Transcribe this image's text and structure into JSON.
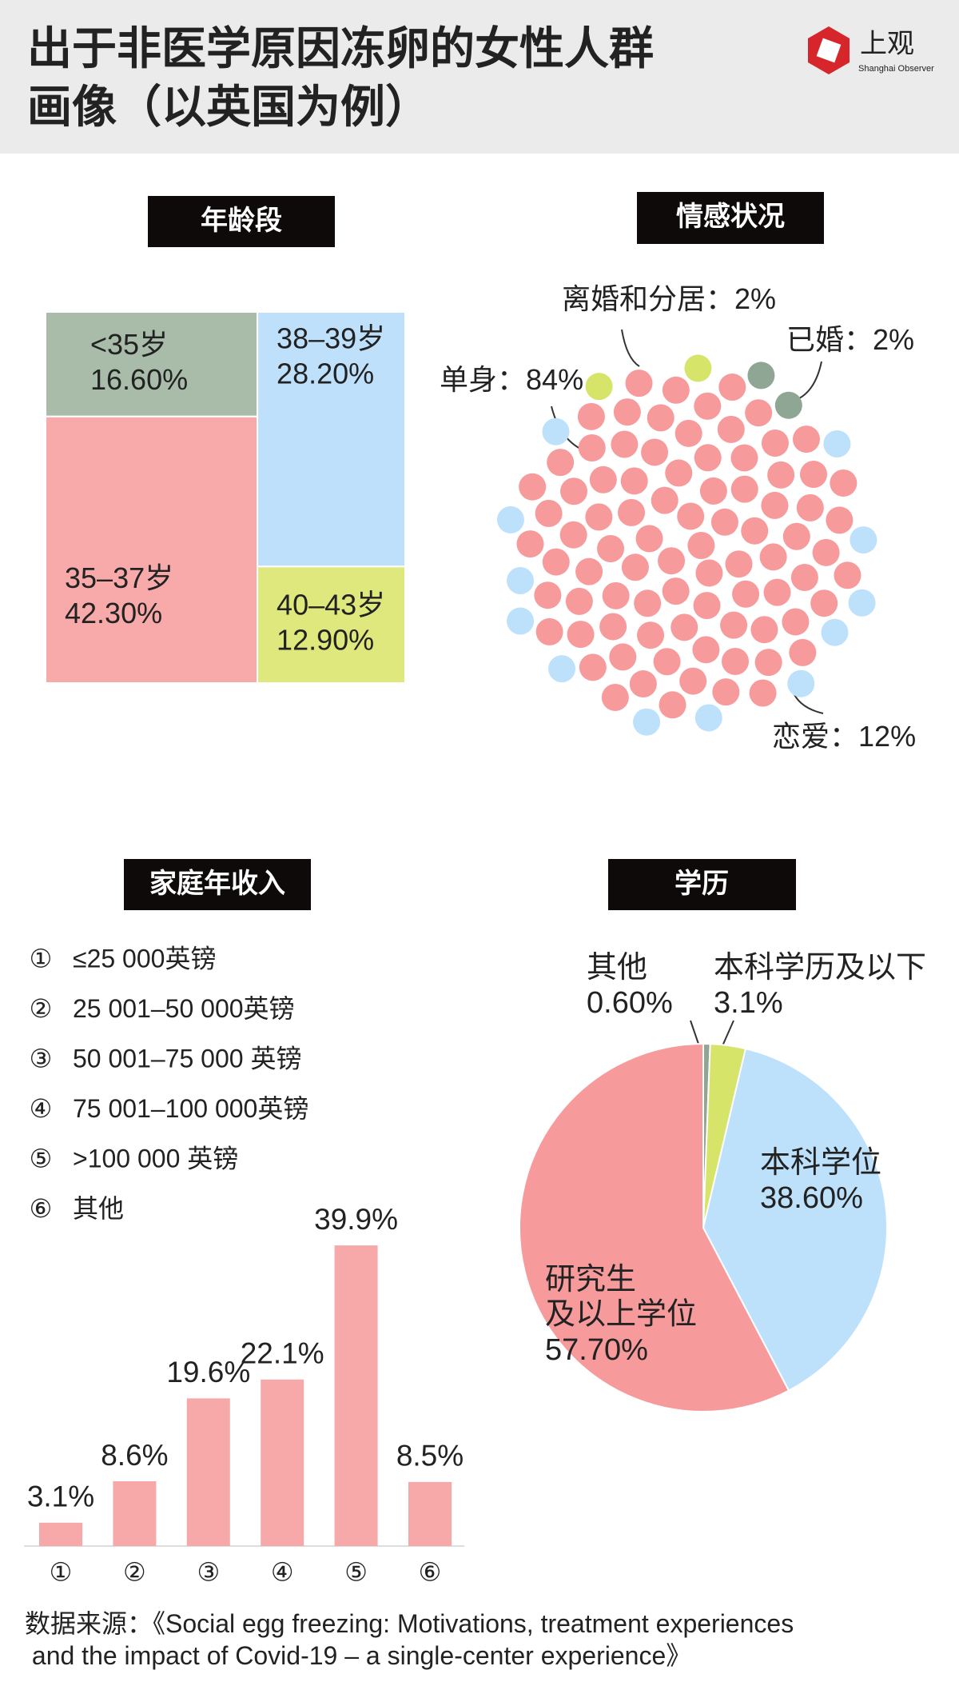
{
  "title": "出于非医学原因冻卵的女性人群\n画像（以英国为例）",
  "logo": {
    "name": "上观",
    "subtitle": "Shanghai Observer"
  },
  "chart_data": [
    {
      "type": "treemap",
      "title": "年龄段",
      "categories": [
        "<35岁",
        "35–37岁",
        "38–39岁",
        "40–43岁"
      ],
      "values": [
        16.6,
        42.3,
        28.2,
        12.9
      ],
      "value_labels": [
        "16.60%",
        "42.30%",
        "28.20%",
        "12.90%"
      ],
      "colors": [
        "#a9bcaa",
        "#f7aaa9",
        "#bfe0fb",
        "#dfe87c"
      ]
    },
    {
      "type": "dots",
      "title": "情感状况",
      "categories": [
        "离婚和分居",
        "已婚",
        "单身",
        "恋爱"
      ],
      "separator": "：",
      "values": [
        2,
        2,
        84,
        12
      ],
      "value_labels": [
        "2%",
        "2%",
        "84%",
        "12%"
      ],
      "colors": [
        "#d6e46a",
        "#8fa694",
        "#f79a9b",
        "#bde0fb"
      ]
    },
    {
      "type": "bar",
      "title": "家庭年收入",
      "categories": [
        "①",
        "②",
        "③",
        "④",
        "⑤",
        "⑥"
      ],
      "category_descriptions": [
        "≤25 000英镑",
        "25 001–50 000英镑",
        "50 001–75 000 英镑",
        "75 001–100 000英镑",
        ">100 000 英镑",
        "其他"
      ],
      "values": [
        3.1,
        8.6,
        19.6,
        22.1,
        39.9,
        8.5
      ],
      "value_labels": [
        "3.1%",
        "8.6%",
        "19.6%",
        "22.1%",
        "39.9%",
        "8.5%"
      ],
      "color": "#f7a9aa"
    },
    {
      "type": "pie",
      "title": "学历",
      "categories": [
        "其他",
        "本科学历及以下",
        "本科学位",
        "研究生\n及以上学位"
      ],
      "values": [
        0.6,
        3.1,
        38.6,
        57.7
      ],
      "value_labels": [
        "0.60%",
        "3.1%",
        "38.60%",
        "57.70%"
      ],
      "colors": [
        "#8fa694",
        "#d6e46a",
        "#bde0fb",
        "#f79a9b"
      ]
    }
  ],
  "source": "数据来源：《Social egg freezing: Motivations, treatment experiences\n and the impact of Covid-19 – a single-center experience》"
}
